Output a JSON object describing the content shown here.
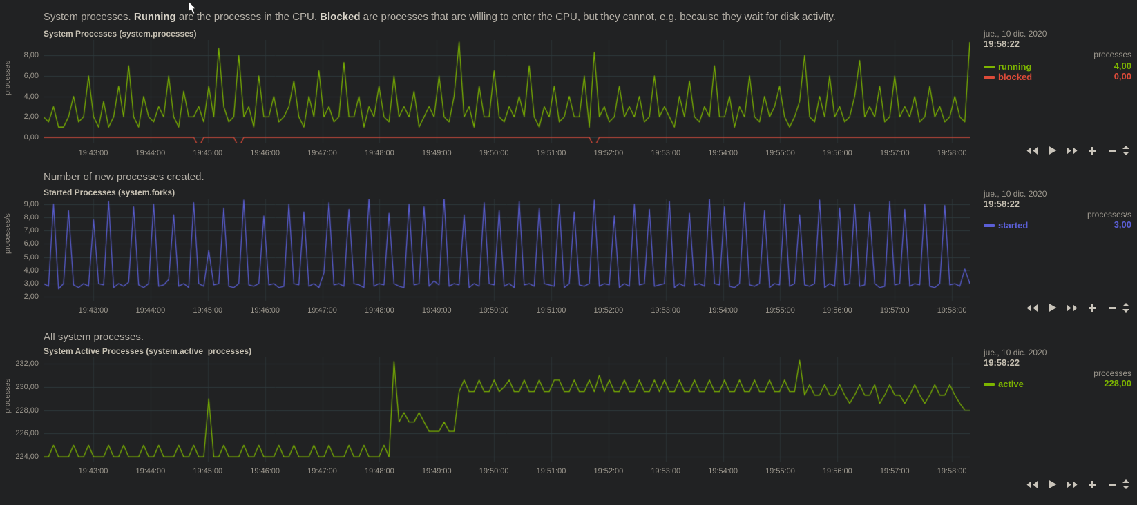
{
  "header": {
    "part1": "System processes. ",
    "bold1": "Running",
    "part2": " are the processes in the CPU. ",
    "bold2": "Blocked",
    "part3": " are processes that are willing to enter the CPU, but they cannot, e.g. because they wait for disk activity."
  },
  "colors": {
    "background": "#212223",
    "grid_horizontal": "#2e3a3c",
    "grid_vertical": "#2a3234",
    "running_green": "#7db500",
    "blocked_red": "#dd4b39",
    "started_blue": "#5b5fd6",
    "active_green": "#7db500",
    "axis_text": "#9c978d",
    "icon": "#c9c4ba"
  },
  "charts": [
    {
      "description": "",
      "title": "System Processes (system.processes)",
      "y_axis_label": "processes",
      "legend": {
        "date": "jue., 10 dic. 2020",
        "time": "19:58:22",
        "unit": "processes",
        "series": [
          {
            "name": "running",
            "value": "4,00",
            "color": "#7db500"
          },
          {
            "name": "blocked",
            "value": "0,00",
            "color": "#dd4b39"
          }
        ]
      },
      "toolbar_icons": [
        "backward-icon",
        "play-icon",
        "forward-icon",
        "zoom-in-icon",
        "zoom-out-icon",
        "resize-handle-icon"
      ]
    },
    {
      "description": "Number of new processes created.",
      "title": "Started Processes (system.forks)",
      "y_axis_label": "processes/s",
      "legend": {
        "date": "jue., 10 dic. 2020",
        "time": "19:58:22",
        "unit": "processes/s",
        "series": [
          {
            "name": "started",
            "value": "3,00",
            "color": "#5b5fd6"
          }
        ]
      },
      "toolbar_icons": [
        "backward-icon",
        "play-icon",
        "forward-icon",
        "zoom-in-icon",
        "zoom-out-icon",
        "resize-handle-icon"
      ]
    },
    {
      "description": "All system processes.",
      "title": "System Active Processes (system.active_processes)",
      "y_axis_label": "processes",
      "legend": {
        "date": "jue., 10 dic. 2020",
        "time": "19:58:22",
        "unit": "processes",
        "series": [
          {
            "name": "active",
            "value": "228,00",
            "color": "#7db500"
          }
        ]
      },
      "toolbar_icons": [
        "backward-icon",
        "play-icon",
        "forward-icon",
        "zoom-in-icon",
        "zoom-out-icon",
        "resize-handle-icon"
      ]
    }
  ],
  "chart_data": [
    {
      "type": "line",
      "title": "System Processes (system.processes)",
      "ylabel": "processes",
      "x_ticks": [
        "19:43:00",
        "19:44:00",
        "19:45:00",
        "19:46:00",
        "19:47:00",
        "19:48:00",
        "19:49:00",
        "19:50:00",
        "19:51:00",
        "19:52:00",
        "19:53:00",
        "19:54:00",
        "19:55:00",
        "19:56:00",
        "19:57:00",
        "19:58:00"
      ],
      "y_tick_values": [
        0,
        2,
        4,
        6,
        8
      ],
      "y_tick_labels": [
        "0,00",
        "2,00",
        "4,00",
        "6,00",
        "8,00"
      ],
      "draw_ylim": [
        -0.6,
        9.5
      ],
      "legend_position": "right",
      "grid": true,
      "series": [
        {
          "name": "running",
          "color": "#7db500",
          "values": [
            2,
            1.5,
            3,
            1,
            1,
            2,
            4,
            1.5,
            2,
            6,
            2,
            1,
            3.5,
            1,
            2,
            5,
            2,
            7,
            2,
            1,
            4,
            2,
            1.5,
            3,
            2,
            6,
            2,
            1,
            4.5,
            2,
            2,
            3,
            1.5,
            5,
            2,
            8.7,
            3,
            1.5,
            2,
            8,
            2,
            3,
            1,
            6,
            2,
            2,
            4,
            1.5,
            2,
            3,
            5.5,
            2,
            1,
            4,
            2,
            6.5,
            2,
            3,
            1.5,
            2,
            7.3,
            2,
            2,
            4,
            1,
            3,
            2,
            5,
            2,
            1.5,
            6,
            2,
            3,
            2,
            4.5,
            1,
            2,
            3,
            2,
            6,
            2,
            1.5,
            4,
            9.3,
            2,
            3,
            1,
            5,
            2,
            2,
            6.5,
            2,
            1.5,
            3,
            2,
            4,
            2,
            7,
            2,
            1,
            3,
            2,
            5,
            1.5,
            2,
            4,
            2,
            2,
            6,
            1,
            8.3,
            2,
            3,
            1.5,
            2,
            5,
            2,
            3,
            2,
            4,
            1.5,
            2,
            6,
            2,
            3,
            2,
            1,
            4,
            2,
            5.5,
            2,
            1.5,
            3,
            2,
            7,
            2,
            2,
            4,
            1,
            3,
            2,
            6,
            2,
            1.5,
            4,
            2,
            3,
            5,
            2,
            1,
            2,
            3.5,
            8,
            2,
            1.5,
            4,
            2,
            6,
            2,
            3,
            1.5,
            2,
            4,
            7.5,
            2,
            3,
            2,
            5,
            1.5,
            2,
            6,
            2,
            3,
            2,
            4,
            1.5,
            2,
            5,
            2,
            3,
            1.5,
            2,
            4,
            2,
            1.5,
            9.3
          ]
        },
        {
          "name": "blocked",
          "color": "#dd4b39",
          "points_count": 186,
          "baseline": 0,
          "spikes": [
            {
              "i": 31,
              "v": -1
            },
            {
              "i": 39,
              "v": -1
            },
            {
              "i": 110,
              "v": -1
            }
          ]
        }
      ]
    },
    {
      "type": "line",
      "title": "Started Processes (system.forks)",
      "ylabel": "processes/s",
      "x_ticks": [
        "19:43:00",
        "19:44:00",
        "19:45:00",
        "19:46:00",
        "19:47:00",
        "19:48:00",
        "19:49:00",
        "19:50:00",
        "19:51:00",
        "19:52:00",
        "19:53:00",
        "19:54:00",
        "19:55:00",
        "19:56:00",
        "19:57:00",
        "19:58:00"
      ],
      "y_tick_values": [
        2,
        3,
        4,
        5,
        6,
        7,
        8,
        9
      ],
      "y_tick_labels": [
        "2,00",
        "3,00",
        "4,00",
        "5,00",
        "6,00",
        "7,00",
        "8,00",
        "9,00"
      ],
      "draw_ylim": [
        1.7,
        9.4
      ],
      "legend_position": "right",
      "grid": true,
      "series": [
        {
          "name": "started",
          "color": "#5b5fd6",
          "values": [
            3,
            2.8,
            9,
            2.6,
            3,
            8.5,
            2.9,
            2.7,
            3,
            2.8,
            7.8,
            3,
            2.9,
            9.2,
            2.7,
            3,
            2.8,
            3.1,
            8.8,
            2.9,
            2.7,
            3,
            9,
            2.8,
            2.9,
            3.3,
            8.2,
            2.8,
            3,
            2.7,
            9.1,
            3,
            2.8,
            5.5,
            2.9,
            3,
            8.7,
            2.8,
            2.7,
            3,
            9.3,
            2.9,
            2.8,
            3,
            8.1,
            2.9,
            3,
            2.7,
            2.8,
            9,
            3,
            2.9,
            8.4,
            2.8,
            3,
            2.7,
            3.8,
            9.1,
            2.9,
            3,
            2.8,
            8.6,
            3,
            2.9,
            2.7,
            9.4,
            2.8,
            3,
            2.9,
            8.3,
            3,
            2.8,
            2.7,
            9,
            2.9,
            3,
            8.8,
            2.8,
            3.2,
            2.9,
            9.5,
            2.8,
            3,
            2.9,
            8.2,
            2.7,
            3,
            2.8,
            9.1,
            3,
            2.9,
            8.5,
            2.8,
            3,
            2.7,
            9.2,
            2.9,
            3,
            2.8,
            8.7,
            3,
            2.9,
            2.8,
            9,
            2.7,
            3,
            8.4,
            2.9,
            2.8,
            3,
            9.3,
            2.8,
            3,
            2.9,
            8.1,
            2.7,
            3,
            2.8,
            9,
            2.9,
            3,
            8.6,
            2.8,
            2.9,
            3,
            9.2,
            2.7,
            3,
            2.8,
            8.3,
            2.9,
            3,
            2.8,
            9.4,
            3,
            2.9,
            8.8,
            2.8,
            2.7,
            3,
            9.1,
            2.9,
            2.8,
            3,
            8.5,
            2.7,
            3,
            2.9,
            9,
            2.8,
            3,
            8.2,
            2.9,
            2.8,
            3,
            9.3,
            2.7,
            3,
            2.8,
            8.7,
            2.9,
            3,
            9,
            2.8,
            2.9,
            8.4,
            3,
            2.7,
            2.8,
            9.2,
            2.9,
            3,
            8.6,
            2.8,
            3,
            2.9,
            9,
            2.8,
            2.7,
            3,
            8.9,
            2.9,
            3,
            2.8,
            4.1,
            3
          ]
        }
      ]
    },
    {
      "type": "line",
      "title": "System Active Processes (system.active_processes)",
      "ylabel": "processes",
      "x_ticks": [
        "19:43:00",
        "19:44:00",
        "19:45:00",
        "19:46:00",
        "19:47:00",
        "19:48:00",
        "19:49:00",
        "19:50:00",
        "19:51:00",
        "19:52:00",
        "19:53:00",
        "19:54:00",
        "19:55:00",
        "19:56:00",
        "19:57:00",
        "19:58:00"
      ],
      "y_tick_values": [
        224,
        226,
        228,
        230,
        232
      ],
      "y_tick_labels": [
        "224,00",
        "226,00",
        "228,00",
        "230,00",
        "232,00"
      ],
      "draw_ylim": [
        223.6,
        232.6
      ],
      "legend_position": "right",
      "grid": true,
      "series": [
        {
          "name": "active",
          "color": "#7db500",
          "values": [
            224,
            224,
            225,
            224,
            224,
            224,
            225,
            224,
            224,
            225,
            224,
            224,
            224,
            225,
            224,
            224,
            225,
            224,
            224,
            224,
            225,
            224,
            224,
            225,
            224,
            224,
            224,
            225,
            224,
            224,
            225,
            224,
            224,
            229,
            224,
            224,
            225,
            224,
            224,
            224,
            225,
            224,
            224,
            225,
            224,
            224,
            224,
            225,
            224,
            224,
            225,
            224,
            224,
            224,
            225,
            224,
            224,
            225,
            224,
            224,
            224,
            225,
            224,
            224,
            225,
            224,
            224,
            224,
            225,
            224,
            232.2,
            227,
            227.8,
            227,
            227,
            227.8,
            227,
            226.2,
            226.2,
            226.2,
            227,
            226.2,
            226.2,
            229.6,
            230.6,
            229.6,
            229.6,
            230.6,
            229.6,
            229.6,
            230.6,
            229.6,
            230,
            230.6,
            229.6,
            229.6,
            230.6,
            229.6,
            229.6,
            230.6,
            229.6,
            229.6,
            230.6,
            230.6,
            229.6,
            229.6,
            230.6,
            229.6,
            229.6,
            230.6,
            229.6,
            231,
            229.6,
            230.6,
            229.6,
            229.6,
            230.6,
            229.6,
            229.6,
            230.6,
            229.6,
            229.6,
            230.6,
            229.6,
            230.6,
            229.6,
            229.6,
            230.6,
            229.6,
            229.6,
            230.6,
            229.6,
            229.6,
            230.6,
            229.6,
            229.6,
            230.6,
            229.6,
            229.6,
            230.6,
            229.6,
            229.6,
            230.6,
            229.6,
            229.6,
            230.6,
            229.6,
            229.6,
            230.6,
            229.6,
            229.6,
            232.3,
            229.3,
            230.2,
            229.3,
            229.3,
            230.2,
            229.3,
            229.3,
            230.2,
            229.3,
            228.6,
            229.3,
            230.2,
            229.3,
            229.3,
            230.2,
            228.6,
            229.3,
            230.2,
            229.3,
            229.3,
            228.6,
            229.3,
            230.2,
            229.3,
            228.6,
            229.3,
            230.2,
            229.3,
            229.3,
            230.2,
            229.3,
            228.6,
            228,
            228
          ]
        }
      ]
    }
  ]
}
